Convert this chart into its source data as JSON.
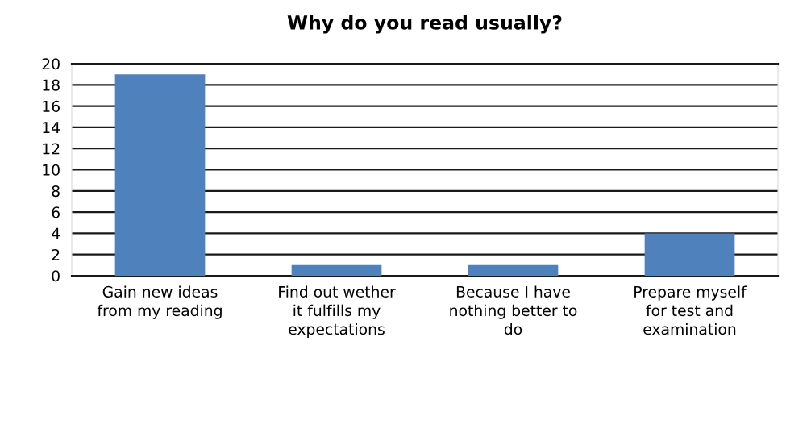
{
  "chart_data": {
    "type": "bar",
    "title": "Why do you read usually?",
    "categories": [
      "Gain new ideas\nfrom my reading",
      "Find out wether\nit fulfills my\nexpectations",
      "Because I have\nnothing better to\ndo",
      "Prepare myself\nfor test and\nexamination"
    ],
    "values": [
      19,
      1,
      1,
      4
    ],
    "color": "#4f81bd",
    "ylim": [
      0,
      20
    ],
    "yticks": [
      0,
      2,
      4,
      6,
      8,
      10,
      12,
      14,
      16,
      18,
      20
    ],
    "grid": "y",
    "legend": false
  }
}
